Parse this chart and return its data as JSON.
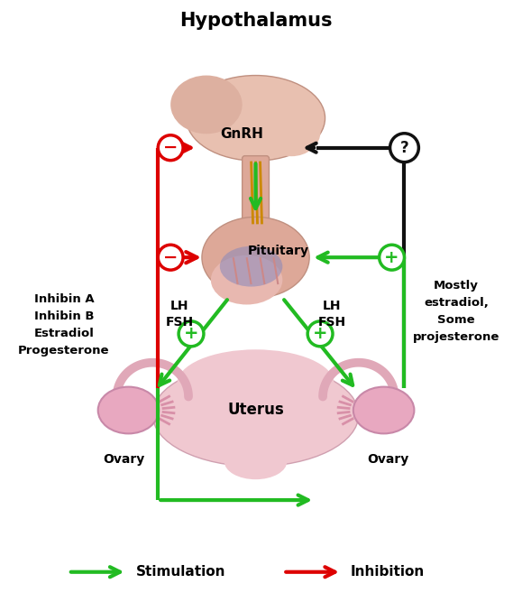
{
  "title": "Hypothalamus",
  "bg_color": "#ffffff",
  "green": "#22bb22",
  "red": "#dd0000",
  "black": "#111111",
  "body_pink": "#e8b4b8",
  "body_pink2": "#dda0a8",
  "body_light": "#f5d0d5",
  "stalk_color": "#d4908a",
  "fiber_color": "#cc8800",
  "blue_inner": "#8899cc",
  "label_gnrh": "GnRH",
  "label_pituitary": "Pituitary",
  "label_uterus": "Uterus",
  "label_ovary_left": "Ovary",
  "label_ovary_right": "Ovary",
  "label_lh_fsh_left": "LH\nFSH",
  "label_lh_fsh_right": "LH\nFSH",
  "label_inhibin": "Inhibin A\nInhibin B\nEstradiol\nProgesterone",
  "label_estradiol": "Mostly\nestradiol,\nSome\nprojesterone",
  "label_stimulation": "Stimulation",
  "label_inhibition": "Inhibition",
  "fig_w": 5.69,
  "fig_h": 6.67,
  "dpi": 100
}
